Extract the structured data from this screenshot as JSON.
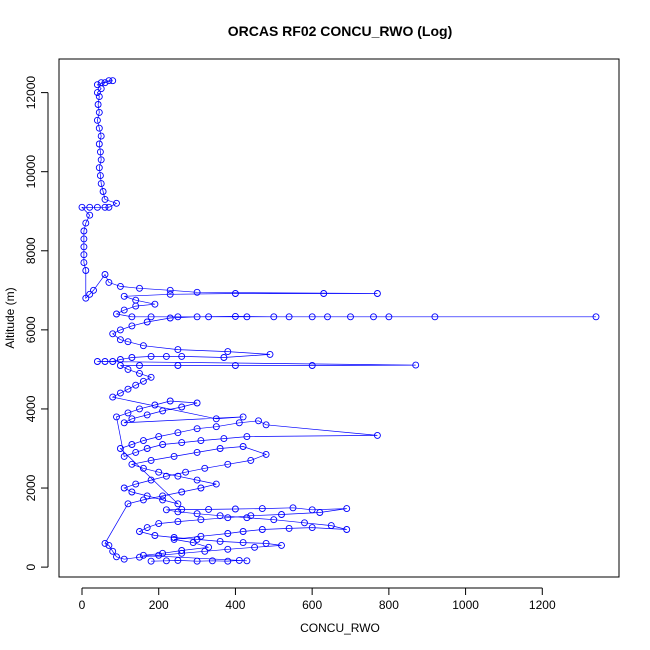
{
  "chart_data": {
    "type": "scatter",
    "title": "ORCAS RF02 CONCU_RWO (Log)",
    "xlabel": "CONCU_RWO",
    "ylabel": "Altitude (m)",
    "xlim": [
      -60,
      1400
    ],
    "ylim": [
      -250,
      12850
    ],
    "xticks": [
      0,
      200,
      400,
      600,
      800,
      1000,
      1200
    ],
    "yticks": [
      0,
      2000,
      4000,
      6000,
      8000,
      10000,
      12000
    ],
    "xtick_labels": [
      "0",
      "200",
      "400",
      "600",
      "800",
      "1000",
      "1200"
    ],
    "ytick_labels": [
      "0",
      "2000",
      "4000",
      "6000",
      "8000",
      "10000",
      "12000"
    ],
    "grid": false,
    "marker": "open-circle",
    "connected": true,
    "colors": {
      "series": "#0000ff",
      "axis": "#000000",
      "background": "#ffffff"
    },
    "series": [
      {
        "points": [
          [
            180,
            150
          ],
          [
            220,
            160
          ],
          [
            250,
            170
          ],
          [
            300,
            150
          ],
          [
            340,
            160
          ],
          [
            380,
            150
          ],
          [
            410,
            170
          ],
          [
            430,
            160
          ],
          [
            160,
            300
          ],
          [
            210,
            350
          ],
          [
            260,
            420
          ],
          [
            330,
            500
          ],
          [
            290,
            620
          ],
          [
            240,
            700
          ],
          [
            310,
            780
          ],
          [
            380,
            850
          ],
          [
            420,
            900
          ],
          [
            470,
            950
          ],
          [
            540,
            980
          ],
          [
            600,
            1000
          ],
          [
            690,
            950
          ],
          [
            650,
            1050
          ],
          [
            580,
            1120
          ],
          [
            500,
            1200
          ],
          [
            430,
            1250
          ],
          [
            360,
            1300
          ],
          [
            300,
            1350
          ],
          [
            250,
            1400
          ],
          [
            220,
            1450
          ],
          [
            260,
            1460
          ],
          [
            330,
            1460
          ],
          [
            400,
            1470
          ],
          [
            470,
            1480
          ],
          [
            550,
            1500
          ],
          [
            600,
            1450
          ],
          [
            690,
            1480
          ],
          [
            620,
            1380
          ],
          [
            520,
            1330
          ],
          [
            440,
            1300
          ],
          [
            380,
            1250
          ],
          [
            310,
            1200
          ],
          [
            250,
            1150
          ],
          [
            200,
            1100
          ],
          [
            170,
            1000
          ],
          [
            150,
            900
          ],
          [
            190,
            800
          ],
          [
            240,
            750
          ],
          [
            300,
            700
          ],
          [
            360,
            650
          ],
          [
            420,
            620
          ],
          [
            480,
            600
          ],
          [
            520,
            550
          ],
          [
            450,
            500
          ],
          [
            380,
            450
          ],
          [
            320,
            400
          ],
          [
            260,
            350
          ],
          [
            200,
            300
          ],
          [
            150,
            250
          ],
          [
            110,
            200
          ],
          [
            90,
            260
          ],
          [
            80,
            400
          ],
          [
            70,
            550
          ],
          [
            60,
            600
          ],
          [
            120,
            1600
          ],
          [
            160,
            1700
          ],
          [
            210,
            1800
          ],
          [
            260,
            1900
          ],
          [
            310,
            2000
          ],
          [
            350,
            2100
          ],
          [
            300,
            2200
          ],
          [
            250,
            2300
          ],
          [
            200,
            2400
          ],
          [
            160,
            2500
          ],
          [
            130,
            2600
          ],
          [
            180,
            2700
          ],
          [
            240,
            2800
          ],
          [
            300,
            2900
          ],
          [
            360,
            3000
          ],
          [
            420,
            3050
          ],
          [
            480,
            2850
          ],
          [
            440,
            2700
          ],
          [
            380,
            2600
          ],
          [
            320,
            2500
          ],
          [
            270,
            2400
          ],
          [
            220,
            2300
          ],
          [
            180,
            2200
          ],
          [
            140,
            2100
          ],
          [
            110,
            2000
          ],
          [
            130,
            1900
          ],
          [
            170,
            1800
          ],
          [
            210,
            1700
          ],
          [
            250,
            1600
          ],
          [
            100,
            3000
          ],
          [
            130,
            3100
          ],
          [
            160,
            3200
          ],
          [
            200,
            3300
          ],
          [
            250,
            3400
          ],
          [
            300,
            3500
          ],
          [
            350,
            3550
          ],
          [
            410,
            3650
          ],
          [
            460,
            3700
          ],
          [
            480,
            3600
          ],
          [
            770,
            3330
          ],
          [
            430,
            3300
          ],
          [
            370,
            3250
          ],
          [
            310,
            3200
          ],
          [
            260,
            3150
          ],
          [
            210,
            3100
          ],
          [
            170,
            3000
          ],
          [
            140,
            2900
          ],
          [
            110,
            2800
          ],
          [
            90,
            3800
          ],
          [
            120,
            3900
          ],
          [
            150,
            4000
          ],
          [
            190,
            4100
          ],
          [
            230,
            4200
          ],
          [
            300,
            4150
          ],
          [
            260,
            4050
          ],
          [
            210,
            3950
          ],
          [
            170,
            3850
          ],
          [
            130,
            3750
          ],
          [
            110,
            3650
          ],
          [
            420,
            3800
          ],
          [
            350,
            3750
          ],
          [
            80,
            4300
          ],
          [
            100,
            4400
          ],
          [
            120,
            4500
          ],
          [
            140,
            4600
          ],
          [
            160,
            4700
          ],
          [
            180,
            4800
          ],
          [
            150,
            4900
          ],
          [
            120,
            5000
          ],
          [
            100,
            5100
          ],
          [
            150,
            5100
          ],
          [
            250,
            5100
          ],
          [
            400,
            5100
          ],
          [
            600,
            5100
          ],
          [
            870,
            5110
          ],
          [
            40,
            5200
          ],
          [
            60,
            5200
          ],
          [
            80,
            5200
          ],
          [
            100,
            5250
          ],
          [
            130,
            5300
          ],
          [
            180,
            5330
          ],
          [
            220,
            5330
          ],
          [
            260,
            5330
          ],
          [
            370,
            5300
          ],
          [
            490,
            5380
          ],
          [
            380,
            5450
          ],
          [
            250,
            5500
          ],
          [
            160,
            5600
          ],
          [
            120,
            5700
          ],
          [
            100,
            5750
          ],
          [
            80,
            5900
          ],
          [
            100,
            6000
          ],
          [
            130,
            6100
          ],
          [
            170,
            6200
          ],
          [
            230,
            6300
          ],
          [
            300,
            6330
          ],
          [
            400,
            6340
          ],
          [
            500,
            6330
          ],
          [
            600,
            6330
          ],
          [
            700,
            6330
          ],
          [
            800,
            6330
          ],
          [
            920,
            6330
          ],
          [
            1340,
            6330
          ],
          [
            760,
            6330
          ],
          [
            640,
            6330
          ],
          [
            540,
            6330
          ],
          [
            430,
            6330
          ],
          [
            330,
            6330
          ],
          [
            250,
            6330
          ],
          [
            180,
            6330
          ],
          [
            130,
            6330
          ],
          [
            90,
            6400
          ],
          [
            110,
            6500
          ],
          [
            140,
            6600
          ],
          [
            190,
            6650
          ],
          [
            140,
            6750
          ],
          [
            110,
            6850
          ],
          [
            230,
            6900
          ],
          [
            400,
            6920
          ],
          [
            630,
            6920
          ],
          [
            770,
            6920
          ],
          [
            300,
            6950
          ],
          [
            230,
            7000
          ],
          [
            150,
            7050
          ],
          [
            100,
            7100
          ],
          [
            70,
            7200
          ],
          [
            60,
            7400
          ],
          [
            30,
            7000
          ],
          [
            20,
            6900
          ],
          [
            10,
            6800
          ],
          [
            10,
            7500
          ],
          [
            5,
            7700
          ],
          [
            5,
            7900
          ],
          [
            5,
            8100
          ],
          [
            5,
            8300
          ],
          [
            5,
            8500
          ],
          [
            10,
            8700
          ],
          [
            20,
            8900
          ],
          [
            0,
            9100
          ],
          [
            20,
            9100
          ],
          [
            40,
            9100
          ],
          [
            60,
            9100
          ],
          [
            70,
            9100
          ],
          [
            90,
            9200
          ],
          [
            60,
            9300
          ],
          [
            55,
            9500
          ],
          [
            50,
            9700
          ],
          [
            48,
            9900
          ],
          [
            45,
            10100
          ],
          [
            50,
            10300
          ],
          [
            48,
            10500
          ],
          [
            45,
            10700
          ],
          [
            50,
            10900
          ],
          [
            45,
            11100
          ],
          [
            40,
            11300
          ],
          [
            45,
            11500
          ],
          [
            42,
            11700
          ],
          [
            45,
            11900
          ],
          [
            40,
            12000
          ],
          [
            50,
            12100
          ],
          [
            40,
            12200
          ],
          [
            60,
            12250
          ],
          [
            70,
            12300
          ],
          [
            80,
            12300
          ],
          [
            50,
            12250
          ]
        ]
      }
    ]
  }
}
